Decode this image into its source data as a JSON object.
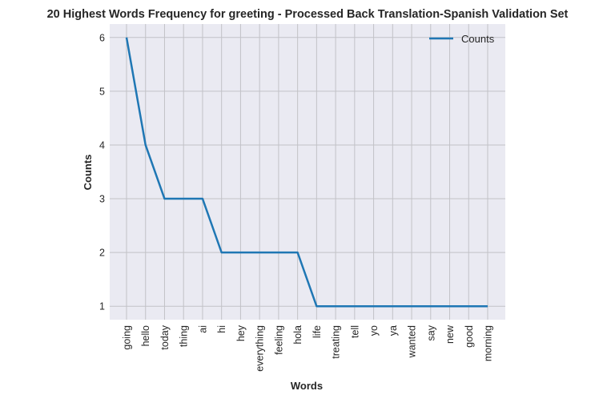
{
  "chart_data": {
    "type": "line",
    "title": "20 Highest Words Frequency for greeting - Processed Back Translation-Spanish Validation Set",
    "xlabel": "Words",
    "ylabel": "Counts",
    "categories": [
      "going",
      "hello",
      "today",
      "thing",
      "ai",
      "hi",
      "hey",
      "everything",
      "feeling",
      "hola",
      "life",
      "treating",
      "tell",
      "yo",
      "ya",
      "wanted",
      "say",
      "new",
      "good",
      "morning"
    ],
    "series": [
      {
        "name": "Counts",
        "values": [
          6,
          4,
          3,
          3,
          3,
          2,
          2,
          2,
          2,
          2,
          1,
          1,
          1,
          1,
          1,
          1,
          1,
          1,
          1,
          1
        ]
      }
    ],
    "ylim": [
      0.75,
      6.25
    ],
    "yticks": [
      1,
      2,
      3,
      4,
      5,
      6
    ],
    "grid": true,
    "legend_position": "top-right",
    "colors": {
      "line": "#1f77b4",
      "plot_background": "#eaeaf2",
      "grid": "#c2c2c7"
    }
  }
}
